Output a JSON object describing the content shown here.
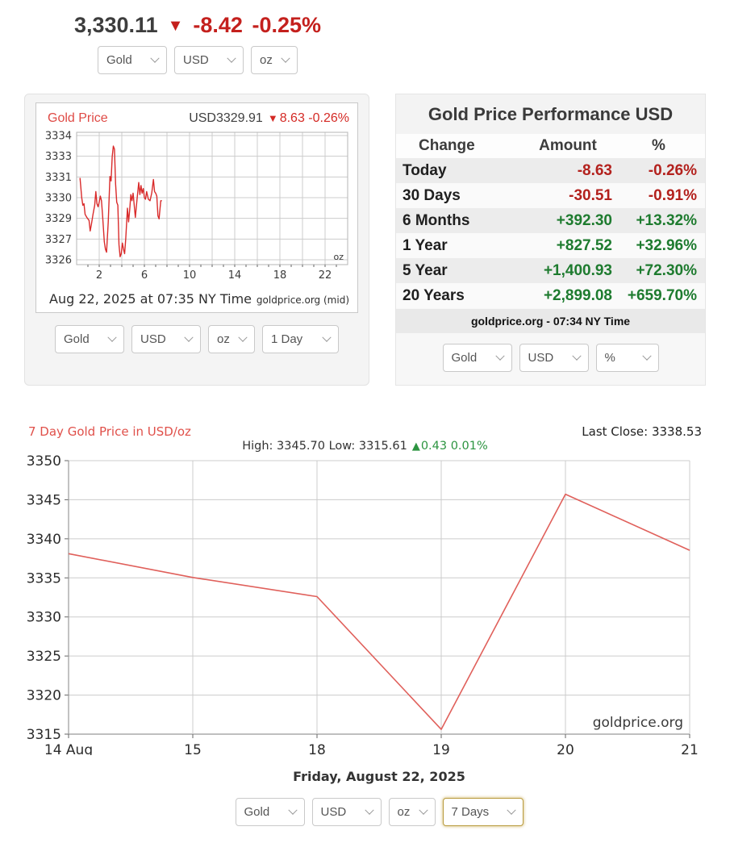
{
  "icons": {
    "down": "▼",
    "up": "▲"
  },
  "colors": {
    "ticker_red": "#c4201d",
    "table_red": "#b3211d",
    "table_green": "#1e7b2f",
    "delta_green": "#2c9440",
    "intraday_line": "#d92b2b",
    "week_line": "#e0605b"
  },
  "ticker": {
    "price": "3,330.11",
    "change": "-8.42",
    "change_pct": "-0.25%",
    "selectors": {
      "metal": "Gold",
      "currency": "USD",
      "unit": "oz"
    }
  },
  "intraday": {
    "title": "Gold Price",
    "quote": "USD3329.91",
    "change": "8.63",
    "change_pct": "-0.26%",
    "timestamp": "Aug 22, 2025 at 07:35 NY Time",
    "source": "goldprice.org (mid)",
    "selectors": {
      "metal": "Gold",
      "currency": "USD",
      "unit": "oz",
      "period": "1 Day"
    }
  },
  "performance": {
    "title": "Gold Price Performance USD",
    "columns": [
      "Change",
      "Amount",
      "%"
    ],
    "rows": [
      {
        "label": "Today",
        "amount": "-8.63",
        "pct": "-0.26%",
        "direction": "down"
      },
      {
        "label": "30 Days",
        "amount": "-30.51",
        "pct": "-0.91%",
        "direction": "down"
      },
      {
        "label": "6 Months",
        "amount": "+392.30",
        "pct": "+13.32%",
        "direction": "up"
      },
      {
        "label": "1 Year",
        "amount": "+827.52",
        "pct": "+32.96%",
        "direction": "up"
      },
      {
        "label": "5 Year",
        "amount": "+1,400.93",
        "pct": "+72.30%",
        "direction": "up"
      },
      {
        "label": "20 Years",
        "amount": "+2,899.08",
        "pct": "+659.70%",
        "direction": "up"
      }
    ],
    "footer": "goldprice.org - 07:34 NY Time",
    "selectors": {
      "metal": "Gold",
      "currency": "USD",
      "display": "%"
    }
  },
  "week": {
    "title": "7 Day Gold Price in USD/oz",
    "last_close": "Last Close: 3338.53",
    "high_low": "High: 3345.70 Low: 3315.61",
    "delta": "0.43 0.01%",
    "date": "Friday, August 22, 2025",
    "selectors": {
      "metal": "Gold",
      "currency": "USD",
      "unit": "oz",
      "period": "7 Days"
    }
  },
  "chart_data": [
    {
      "id": "intraday",
      "type": "line",
      "title": "Gold Price 1 Day (USD/oz)",
      "unit_label": "oz",
      "x_range": [
        0,
        24
      ],
      "x_ticks": [
        2,
        6,
        10,
        14,
        18,
        22
      ],
      "y_tick_labels": [
        "3334",
        "3333",
        "3331",
        "3330",
        "3329",
        "3327",
        "3326"
      ],
      "y_top": 3334.2,
      "y_bottom": 3326.0,
      "line_color": "#d92b2b",
      "points": [
        [
          0.3,
          3331.4
        ],
        [
          0.45,
          3330.1
        ],
        [
          0.55,
          3329.6
        ],
        [
          0.65,
          3329.7
        ],
        [
          0.75,
          3329.0
        ],
        [
          0.9,
          3328.8
        ],
        [
          1.0,
          3328.7
        ],
        [
          1.1,
          3328.6
        ],
        [
          1.2,
          3327.9
        ],
        [
          1.3,
          3328.3
        ],
        [
          1.45,
          3329.0
        ],
        [
          1.6,
          3329.6
        ],
        [
          1.7,
          3330.5
        ],
        [
          1.8,
          3329.7
        ],
        [
          1.9,
          3329.5
        ],
        [
          2.0,
          3329.8
        ],
        [
          2.1,
          3330.2
        ],
        [
          2.2,
          3329.9
        ],
        [
          2.3,
          3328.9
        ],
        [
          2.45,
          3327.2
        ],
        [
          2.55,
          3326.7
        ],
        [
          2.65,
          3326.5
        ],
        [
          2.8,
          3328.5
        ],
        [
          2.95,
          3331.5
        ],
        [
          3.05,
          3331.2
        ],
        [
          3.15,
          3332.8
        ],
        [
          3.25,
          3333.5
        ],
        [
          3.35,
          3333.3
        ],
        [
          3.45,
          3331.0
        ],
        [
          3.55,
          3329.8
        ],
        [
          3.65,
          3329.6
        ],
        [
          3.75,
          3327.0
        ],
        [
          3.85,
          3326.2
        ],
        [
          3.95,
          3326.4
        ],
        [
          4.05,
          3327.1
        ],
        [
          4.15,
          3326.7
        ],
        [
          4.25,
          3326.4
        ],
        [
          4.35,
          3327.4
        ],
        [
          4.5,
          3329.4
        ],
        [
          4.6,
          3328.5
        ],
        [
          4.7,
          3329.3
        ],
        [
          4.8,
          3330.3
        ],
        [
          4.9,
          3329.9
        ],
        [
          5.0,
          3330.4
        ],
        [
          5.1,
          3329.6
        ],
        [
          5.2,
          3328.8
        ],
        [
          5.35,
          3330.0
        ],
        [
          5.5,
          3331.1
        ],
        [
          5.6,
          3330.3
        ],
        [
          5.7,
          3330.9
        ],
        [
          5.8,
          3330.4
        ],
        [
          5.9,
          3330.7
        ],
        [
          6.0,
          3330.1
        ],
        [
          6.1,
          3330.0
        ],
        [
          6.2,
          3330.5
        ],
        [
          6.35,
          3330.0
        ],
        [
          6.5,
          3329.9
        ],
        [
          6.65,
          3330.4
        ],
        [
          6.8,
          3331.3
        ],
        [
          6.9,
          3330.5
        ],
        [
          7.0,
          3330.4
        ],
        [
          7.1,
          3330.2
        ],
        [
          7.2,
          3328.9
        ],
        [
          7.3,
          3328.7
        ],
        [
          7.45,
          3329.9
        ],
        [
          7.55,
          3329.9
        ]
      ]
    },
    {
      "id": "week",
      "type": "line",
      "title": "7 Day Gold Price in USD/oz",
      "categories": [
        "14 Aug",
        "15",
        "18",
        "19",
        "20",
        "21"
      ],
      "values": [
        3338.1,
        3335.05,
        3332.6,
        3315.61,
        3345.7,
        3338.53
      ],
      "ylim": [
        3315,
        3350
      ],
      "y_step": 5,
      "high": 3345.7,
      "low": 3315.61,
      "last_close": 3338.53,
      "line_color": "#e0605b",
      "watermark": "goldprice.org",
      "legend": "none",
      "grid": true
    }
  ]
}
